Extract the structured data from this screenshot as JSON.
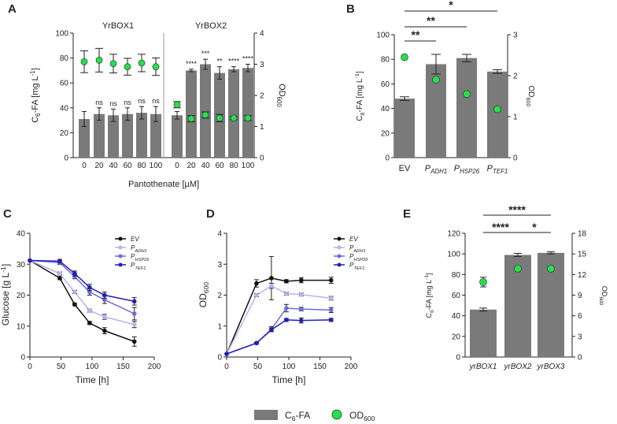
{
  "colors": {
    "bar": "#7a7a7a",
    "od": "#22e34a",
    "ev": "#111111",
    "adh1": "#b6b4ee",
    "hsp26": "#6b6bdd",
    "tef1": "#1f1fb8"
  },
  "legend": {
    "c6fa": "C6-FA",
    "od": "OD600"
  },
  "chart_data": [
    {
      "panel": "A",
      "type": "bar",
      "groups": [
        "YrBOX1",
        "YrBOX2"
      ],
      "categories": [
        "0",
        "20",
        "40",
        "60",
        "80",
        "100"
      ],
      "xlabel": "Pantothenate [µM]",
      "ylabel": "C6-FA [mg L-1]",
      "ylim": [
        0,
        100
      ],
      "yticks": [
        0,
        20,
        40,
        60,
        80,
        100
      ],
      "y2label": "OD600",
      "y2lim": [
        0,
        4
      ],
      "y2ticks": [
        0,
        1,
        2,
        3,
        4
      ],
      "series": [
        {
          "name": "C6-FA YrBOX1",
          "values": [
            31,
            35,
            34,
            35,
            36,
            35
          ],
          "err": [
            6,
            5,
            5,
            5,
            5,
            6
          ]
        },
        {
          "name": "OD600 YrBOX1",
          "values": [
            3.08,
            3.13,
            3.02,
            2.92,
            3.04,
            2.92
          ],
          "err": [
            0.35,
            0.38,
            0.3,
            0.27,
            0.28,
            0.28
          ]
        },
        {
          "name": "C6-FA YrBOX2",
          "values": [
            34,
            70,
            75,
            68,
            71,
            72
          ],
          "err": [
            3,
            1,
            4,
            5,
            2,
            3
          ]
        },
        {
          "name": "OD600 YrBOX2",
          "values": [
            1.7,
            1.25,
            1.37,
            1.27,
            1.27,
            1.27
          ],
          "err": [
            0.1,
            0.1,
            0.1,
            0.12,
            0.05,
            0.08
          ]
        }
      ],
      "annotations_yrbox1": [
        "ns",
        "ns",
        "ns",
        "ns",
        "ns"
      ],
      "annotations_yrbox2": [
        "****",
        "***",
        "**",
        "****",
        "****"
      ]
    },
    {
      "panel": "B",
      "type": "bar",
      "categories": [
        "EV",
        "P",
        "P",
        "P"
      ],
      "category_subscripts": [
        "",
        "ADH1",
        "HSP26",
        "TEF1"
      ],
      "ylabel": "C6-FA [mg L-1]",
      "ylim": [
        0,
        100
      ],
      "yticks": [
        0,
        20,
        40,
        60,
        80,
        100
      ],
      "y2label": "OD600",
      "y2lim": [
        0,
        3
      ],
      "y2ticks": [
        0,
        1,
        2,
        3
      ],
      "series": [
        {
          "name": "C6-FA",
          "values": [
            48,
            76,
            81,
            70
          ],
          "err": [
            1.5,
            8,
            3,
            1.5
          ]
        },
        {
          "name": "OD600",
          "values": [
            2.45,
            1.9,
            1.55,
            1.18
          ]
        }
      ],
      "significance": [
        {
          "from": 0,
          "to": 1,
          "label": "**"
        },
        {
          "from": 0,
          "to": 2,
          "label": "**"
        },
        {
          "from": 0,
          "to": 3,
          "label": "*"
        }
      ]
    },
    {
      "panel": "C",
      "type": "line",
      "x": [
        0,
        48,
        72,
        96,
        120,
        168
      ],
      "xlabel": "Time [h]",
      "xlim": [
        0,
        200
      ],
      "xticks": [
        0,
        50,
        100,
        150,
        200
      ],
      "ylabel": "Glucose [g L-1]",
      "ylim": [
        0,
        40
      ],
      "yticks": [
        0,
        10,
        20,
        30,
        40
      ],
      "legend_labels": [
        "EV",
        "P",
        "P",
        "P"
      ],
      "legend_subscripts": [
        "",
        "ADH1",
        "HSP26",
        "TEF1"
      ],
      "series": [
        {
          "name": "EV",
          "values": [
            31.2,
            25.5,
            17,
            11,
            8.5,
            5
          ],
          "err": [
            0,
            0.5,
            0.4,
            0.5,
            1,
            1.5
          ]
        },
        {
          "name": "PADH1",
          "values": [
            31.2,
            27,
            21,
            15,
            13,
            10.5
          ],
          "err": [
            0,
            0.5,
            0.5,
            0.5,
            0.8,
            1
          ]
        },
        {
          "name": "PHSP26",
          "values": [
            31.2,
            30.5,
            26,
            21,
            18.5,
            14
          ],
          "err": [
            0,
            0.6,
            0.7,
            1,
            1.2,
            2
          ]
        },
        {
          "name": "PTEF1",
          "values": [
            31.2,
            31,
            27,
            22.5,
            20,
            18
          ],
          "err": [
            0,
            0.6,
            0.8,
            1,
            1,
            1.2
          ]
        }
      ]
    },
    {
      "panel": "D",
      "type": "line",
      "x": [
        0,
        48,
        72,
        96,
        120,
        168
      ],
      "xlabel": "Time [h]",
      "xlim": [
        0,
        200
      ],
      "xticks": [
        0,
        50,
        100,
        150,
        200
      ],
      "ylabel": "OD600",
      "ylim": [
        0,
        4
      ],
      "yticks": [
        0,
        1,
        2,
        3,
        4
      ],
      "legend_labels": [
        "EV",
        "P",
        "P",
        "P"
      ],
      "legend_subscripts": [
        "",
        "ADH1",
        "HSP26",
        "TEF1"
      ],
      "series": [
        {
          "name": "EV",
          "values": [
            0.1,
            2.38,
            2.55,
            2.45,
            2.48,
            2.48
          ],
          "err": [
            0,
            0.12,
            0.7,
            0.05,
            0.08,
            0.1
          ]
        },
        {
          "name": "PADH1",
          "values": [
            0.1,
            2.0,
            2.3,
            2.05,
            2.02,
            1.9
          ],
          "err": [
            0,
            0.05,
            0.08,
            0.05,
            0.05,
            0.06
          ]
        },
        {
          "name": "PHSP26",
          "values": [
            0.1,
            0.45,
            0.9,
            1.58,
            1.55,
            1.52
          ],
          "err": [
            0,
            0.03,
            0.08,
            0.12,
            0.06,
            0.08
          ]
        },
        {
          "name": "PTEF1",
          "values": [
            0.1,
            0.45,
            0.88,
            1.2,
            1.18,
            1.2
          ],
          "err": [
            0,
            0.03,
            0.06,
            0.05,
            0.08,
            0.05
          ]
        }
      ]
    },
    {
      "panel": "E",
      "type": "bar",
      "categories": [
        "yrBOX1",
        "yrBOX2",
        "yrBOX3"
      ],
      "ylabel": "C6-FA [mg L-1]",
      "ylim": [
        0,
        120
      ],
      "yticks": [
        0,
        20,
        40,
        60,
        80,
        100,
        120
      ],
      "y2label": "OD600",
      "y2lim": [
        0,
        18
      ],
      "y2ticks": [
        0,
        3,
        6,
        9,
        12,
        15,
        18
      ],
      "series": [
        {
          "name": "C6-FA",
          "values": [
            46,
            99,
            101
          ],
          "err": [
            1.5,
            1.5,
            1
          ]
        },
        {
          "name": "OD600",
          "values": [
            10.9,
            12.85,
            12.85
          ],
          "err": [
            0.7,
            0,
            0
          ]
        }
      ],
      "significance": [
        {
          "from": 0,
          "to": 1,
          "label": "****"
        },
        {
          "from": 0,
          "to": 2,
          "label": "****"
        },
        {
          "from": 1,
          "to": 2,
          "label": "*"
        }
      ]
    }
  ]
}
